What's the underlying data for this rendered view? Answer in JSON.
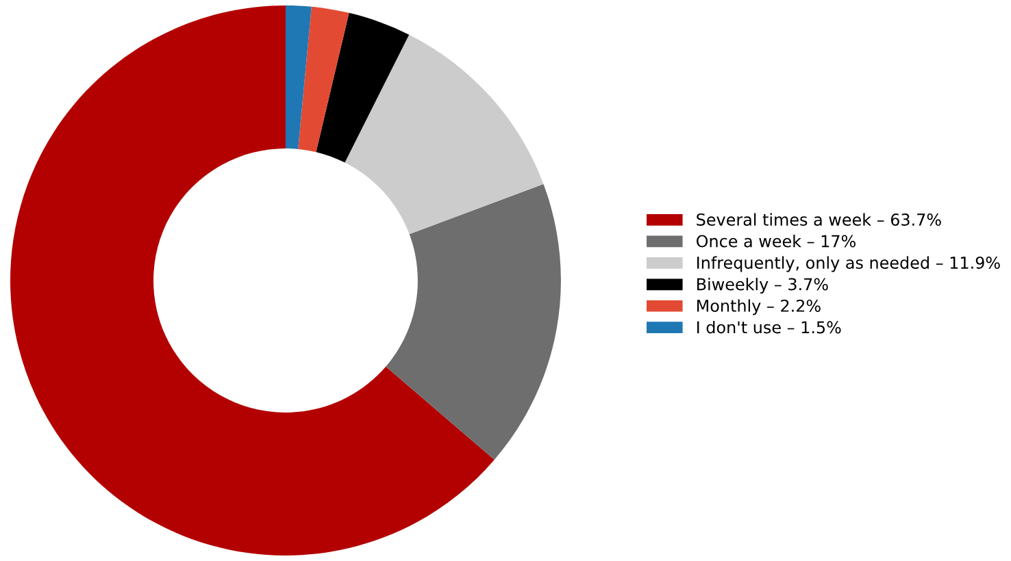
{
  "chart_data": {
    "type": "donut",
    "categories": [
      "Several times a week – 63.7%",
      "Once a week – 17%",
      "Infrequently, only as needed – 11.9%",
      "Biweekly – 3.7%",
      "Monthly – 2.2%",
      "I don't use – 1.5%"
    ],
    "values": [
      63.7,
      17,
      11.9,
      3.7,
      2.2,
      1.5
    ],
    "colors": [
      "#b30000",
      "#6e6e6e",
      "#cccccc",
      "#000000",
      "#e34a33",
      "#1f77b4"
    ],
    "legend": "right"
  }
}
